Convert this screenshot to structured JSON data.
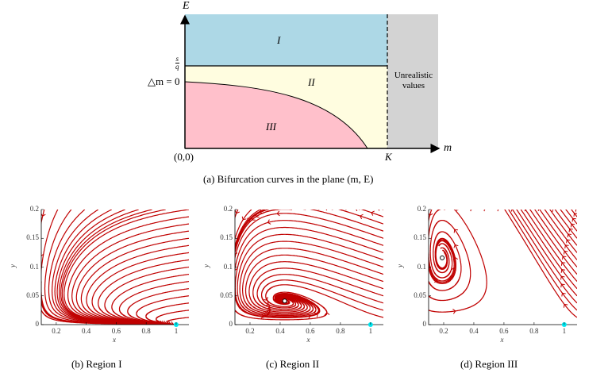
{
  "panel_a": {
    "y_axis_label": "E",
    "x_axis_label": "m",
    "origin_label": "(0,0)",
    "k_label": "K",
    "sq_label_num": "s",
    "sq_label_den": "q",
    "delta_label": "△m = 0",
    "regions": [
      "I",
      "II",
      "III"
    ],
    "unrealistic_line1": "Unrealistic",
    "unrealistic_line2": "values",
    "caption": "(a)  Bifurcation curves in the plane (m, E)",
    "colors": {
      "region_I": "#add8e6",
      "region_II": "#fffde0",
      "region_III": "#ffc0cb",
      "unrealistic": "#d3d3d3"
    }
  },
  "phase_panels": [
    {
      "caption": "(b)  Region I",
      "xlabel": "x",
      "ylabel": "y",
      "xticks": [
        "0.2",
        "0.4",
        "0.6",
        "0.8",
        "1"
      ],
      "yticks": [
        "0",
        "0.05",
        "0.1",
        "0.15",
        "0.2"
      ]
    },
    {
      "caption": "(c)  Region II",
      "xlabel": "x",
      "ylabel": "y",
      "xticks": [
        "0.2",
        "0.4",
        "0.6",
        "0.8",
        "1"
      ],
      "yticks": [
        "0",
        "0.05",
        "0.1",
        "0.15",
        "0.2"
      ]
    },
    {
      "caption": "(d)  Region III",
      "xlabel": "x",
      "ylabel": "y",
      "xticks": [
        "0.2",
        "0.4",
        "0.6",
        "0.8",
        "1"
      ],
      "yticks": [
        "0",
        "0.05",
        "0.1",
        "0.15",
        "0.2"
      ]
    }
  ],
  "colors": {
    "streamline": "#c00000",
    "equilibrium_stable": "#00e5ee",
    "equilibrium_interior": "#ffffff"
  }
}
